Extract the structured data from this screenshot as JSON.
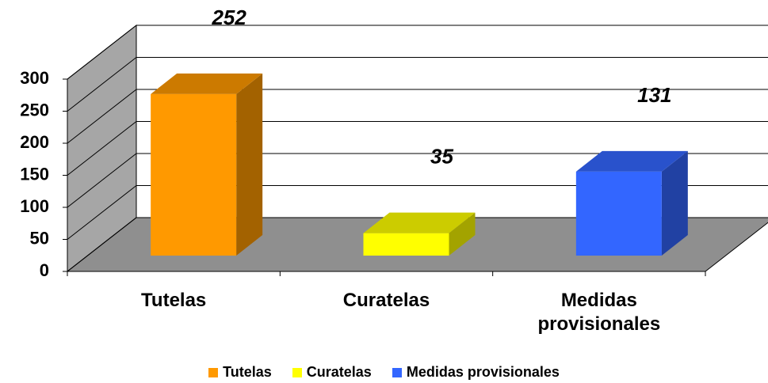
{
  "chart_data": {
    "type": "bar3d",
    "categories": [
      "Tutelas",
      "Curatelas",
      "Medidas provisionales"
    ],
    "values": [
      252,
      35,
      131
    ],
    "colors": [
      "#ff9900",
      "#ffff00",
      "#3366ff"
    ],
    "ylim": [
      0,
      300
    ],
    "yticks": [
      0,
      50,
      100,
      150,
      200,
      250,
      300
    ],
    "grid": true,
    "legend": "bottom"
  }
}
